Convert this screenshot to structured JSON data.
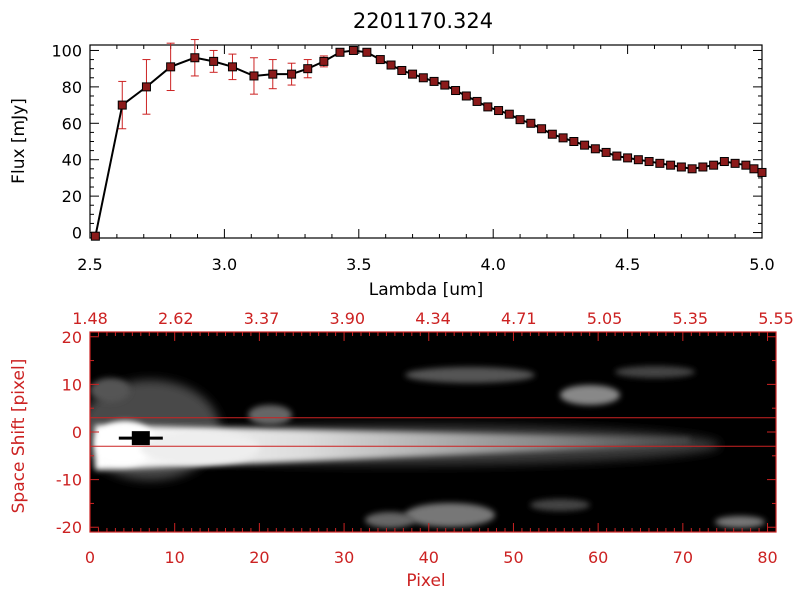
{
  "chart_data": [
    {
      "type": "line",
      "title": "2201170.324",
      "xlabel": "Lambda [um]",
      "ylabel": "Flux [mJy]",
      "xlim": [
        2.5,
        5.0
      ],
      "ylim": [
        -3,
        103
      ],
      "x_ticks": [
        "2.5",
        "3.0",
        "3.5",
        "4.0",
        "4.5",
        "5.0"
      ],
      "y_ticks": [
        "0",
        "20",
        "40",
        "60",
        "80",
        "100"
      ],
      "colors": {
        "line": "#000000",
        "marker": "#8b1a1a",
        "error": "#cc2222",
        "axis": "#000000"
      },
      "series": [
        {
          "x": [
            2.52,
            2.62,
            2.71,
            2.8,
            2.89,
            2.96,
            3.03,
            3.11,
            3.18,
            3.25,
            3.31,
            3.37,
            3.43,
            3.48,
            3.53,
            3.58,
            3.62,
            3.66,
            3.7,
            3.74,
            3.78,
            3.82,
            3.86,
            3.9,
            3.94,
            3.98,
            4.02,
            4.06,
            4.1,
            4.14,
            4.18,
            4.22,
            4.26,
            4.3,
            4.34,
            4.38,
            4.42,
            4.46,
            4.5,
            4.54,
            4.58,
            4.62,
            4.66,
            4.7,
            4.74,
            4.78,
            4.82,
            4.86,
            4.9,
            4.94,
            4.97,
            5.0
          ],
          "y": [
            -2,
            70,
            80,
            91,
            96,
            94,
            91,
            86,
            87,
            87,
            90,
            94,
            99,
            100,
            99,
            95,
            92,
            89,
            87,
            85,
            83,
            81,
            78,
            75,
            72,
            69,
            67,
            65,
            62,
            60,
            57,
            54,
            52,
            50,
            48,
            46,
            44,
            42,
            41,
            40,
            39,
            38,
            37,
            36,
            35,
            36,
            37,
            39,
            38,
            37,
            35,
            33
          ],
          "error": [
            0,
            13,
            15,
            13,
            10,
            6,
            7,
            10,
            8,
            6,
            5,
            3,
            2,
            2,
            1,
            1,
            1,
            1,
            1,
            1,
            1,
            1,
            1,
            1,
            1,
            1,
            1,
            1,
            1,
            1,
            1,
            1,
            1,
            1,
            1,
            1,
            1,
            1,
            1,
            1,
            1,
            1,
            1,
            1,
            1,
            1,
            1,
            1,
            1,
            1,
            1,
            1
          ]
        }
      ]
    },
    {
      "type": "heatmap",
      "xlabel": "Pixel",
      "ylabel": "Space Shift [pixel]",
      "xlim": [
        0,
        81
      ],
      "ylim": [
        -21,
        21
      ],
      "x_ticks": [
        "0",
        "10",
        "20",
        "30",
        "40",
        "50",
        "60",
        "70",
        "80"
      ],
      "y_ticks": [
        "-20",
        "-10",
        "0",
        "10",
        "20"
      ],
      "top_ticks": [
        "1.48",
        "2.62",
        "3.37",
        "3.90",
        "4.34",
        "4.71",
        "5.05",
        "5.35",
        "5.55"
      ],
      "extraction_lines": [
        3,
        -3
      ],
      "marker": {
        "x": 6,
        "y": -1.5
      },
      "colors": {
        "axis": "#cc2222",
        "background": "#000000",
        "signal": "#ffffff",
        "marker": "#000000"
      }
    }
  ]
}
